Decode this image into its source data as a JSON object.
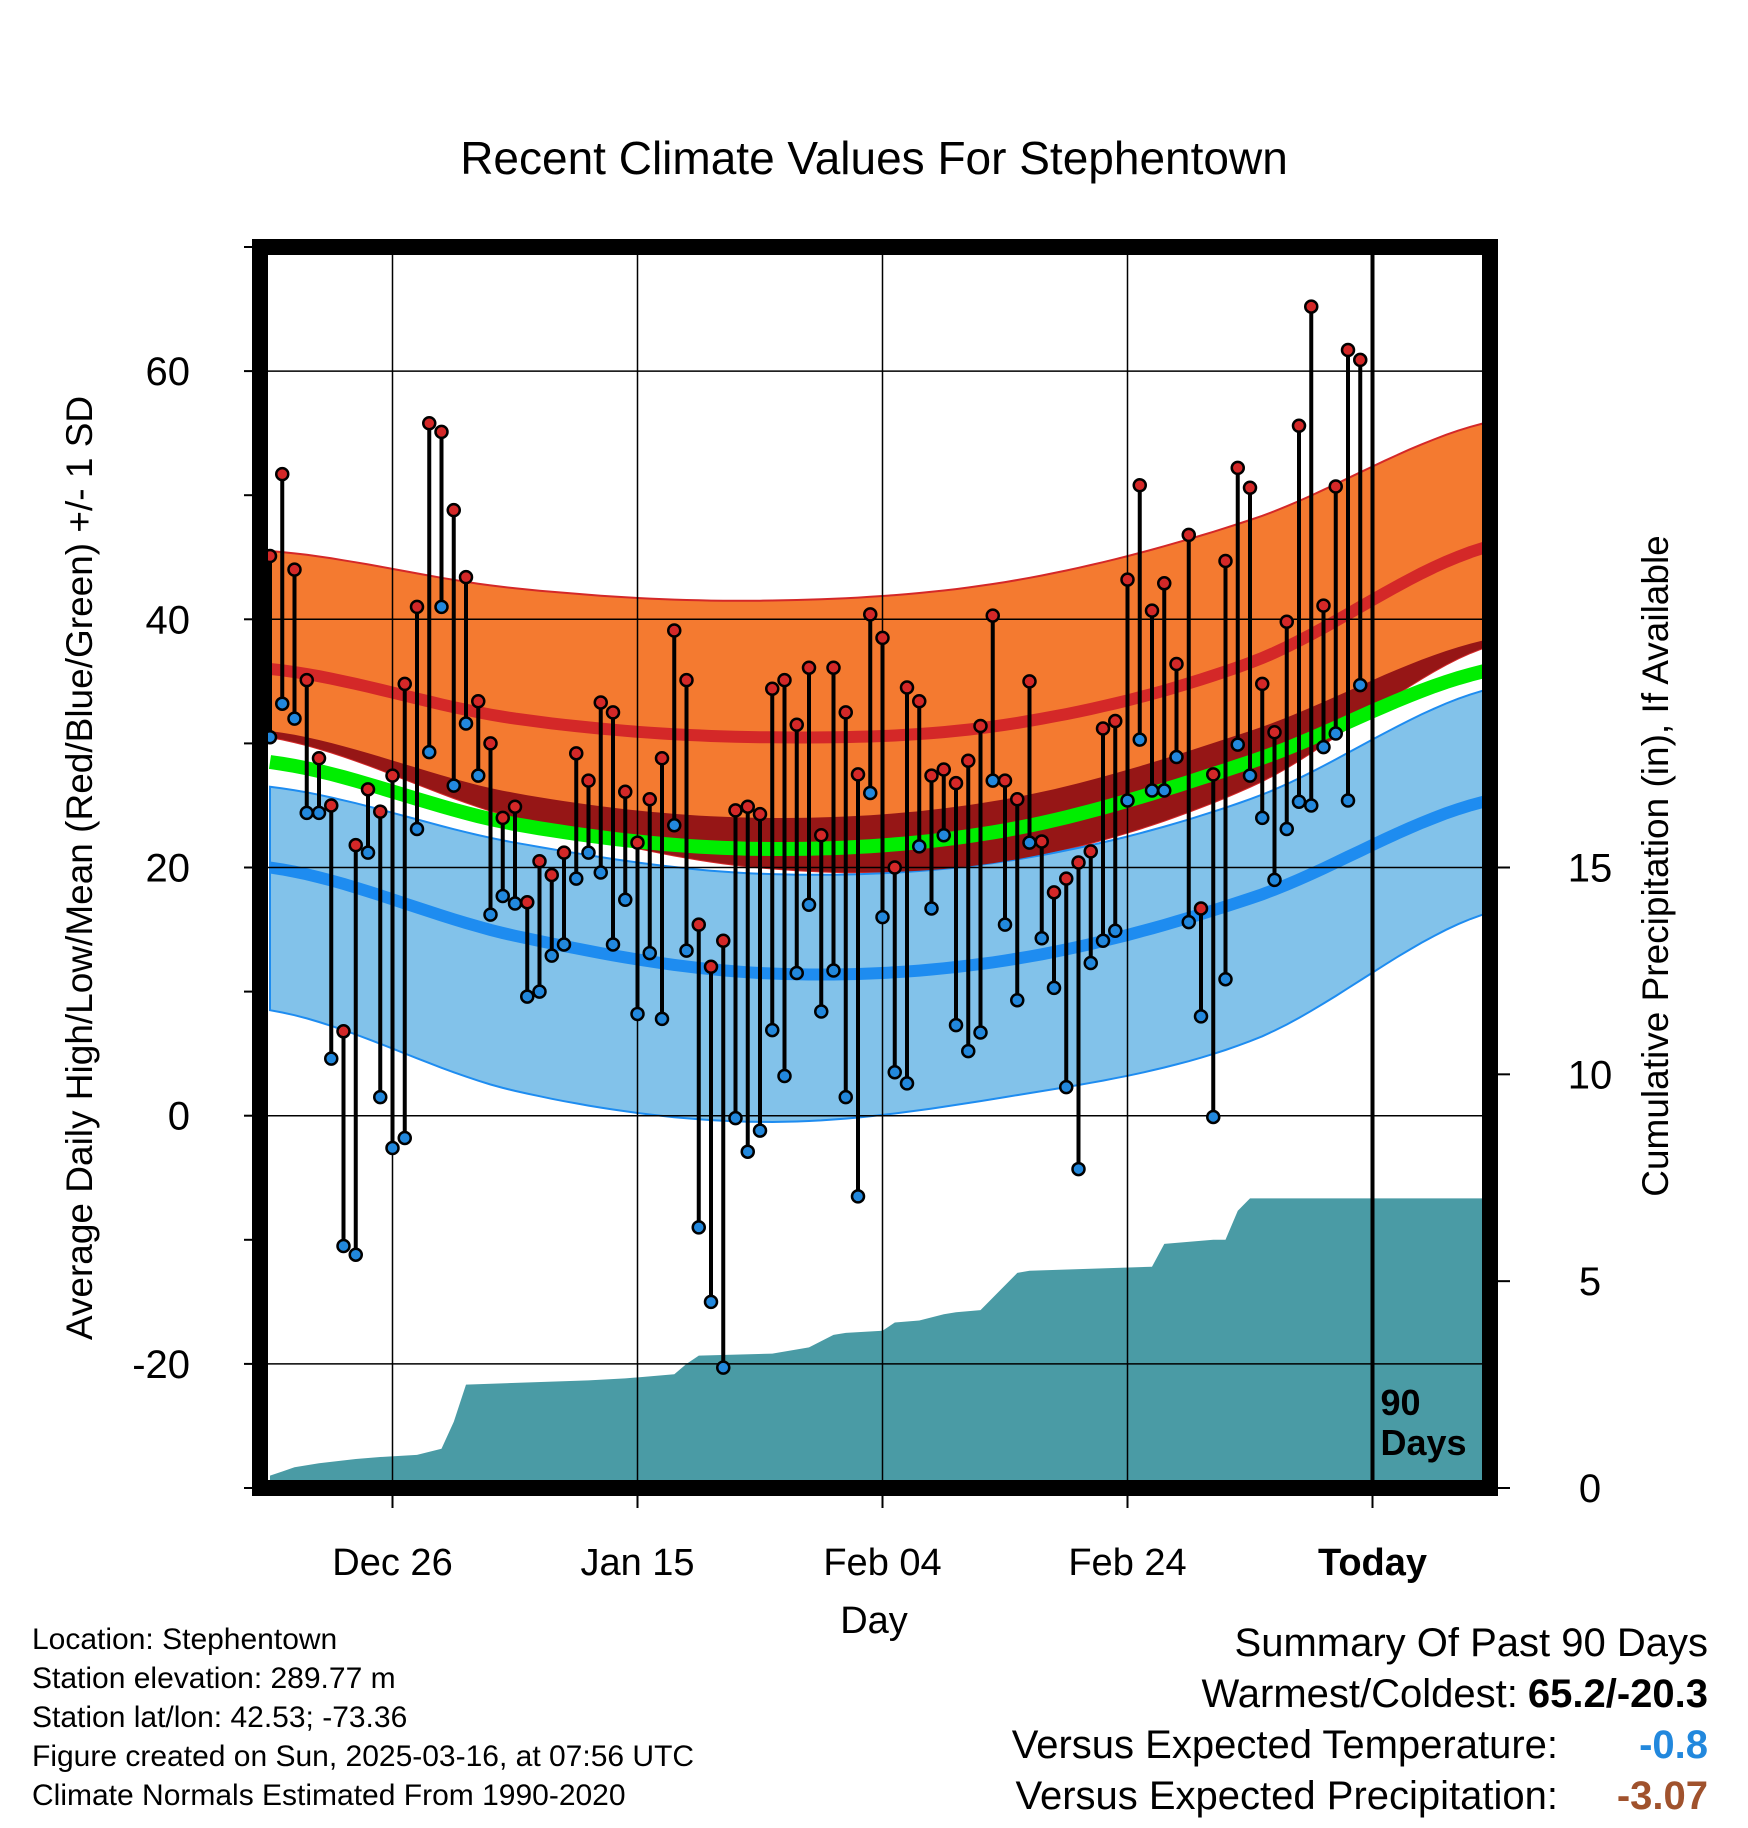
{
  "chart_data": {
    "type": "line",
    "title": "Recent Climate Values For Stephentown",
    "xlabel": "Day",
    "ylabel": "Average Daily High/Low/Mean (Red/Blue/Green) +/- 1 SD",
    "ylabel_right": "Cumulative Precipitation (in), If Available",
    "x_tick_labels": [
      "Dec 26",
      "Jan 15",
      "Feb 04",
      "Feb 24",
      "Today"
    ],
    "y_ticks": [
      "-20",
      "0",
      "20",
      "40",
      "60"
    ],
    "y_ticks_right": [
      "0",
      "5",
      "10",
      "15"
    ],
    "ylim": [
      -30,
      70
    ],
    "ylim_right": [
      0,
      30
    ],
    "today_marker": "90\nDays",
    "grid": true,
    "colors": {
      "high_band": "#f47a30",
      "high_normal": "#d42828",
      "mean_band": "#961616",
      "mean_normal": "#00ee00",
      "low_band": "#82c2ea",
      "low_normal": "#1e8cf0",
      "precip": "#4a9ba5",
      "high_dot": "#d42828",
      "low_dot": "#2288dd"
    },
    "observed_highs": [
      45.1,
      51.7,
      44.0,
      35.1,
      28.8,
      25.0,
      6.8,
      21.8,
      26.3,
      24.5,
      27.4,
      34.8,
      41.0,
      55.8,
      55.1,
      48.8,
      43.4,
      33.4,
      30.0,
      24.0,
      24.9,
      17.2,
      20.5,
      19.4,
      21.2,
      29.2,
      27.0,
      33.3,
      32.5,
      26.1,
      22.0,
      25.5,
      28.8,
      39.1,
      35.1,
      15.4,
      12.0,
      14.1,
      24.6,
      24.9,
      24.3,
      34.4,
      35.1,
      31.5,
      36.1,
      22.6,
      36.1,
      32.5,
      27.5,
      40.4,
      38.5,
      20.0,
      34.5,
      33.4,
      27.4,
      27.9,
      26.8,
      28.6,
      31.4,
      40.3,
      27.0,
      25.5,
      35.0,
      22.1,
      18.0,
      19.1,
      20.4,
      21.3,
      31.2,
      31.8,
      43.2,
      50.8,
      40.7,
      42.9,
      36.4,
      46.8,
      16.7,
      27.5,
      44.7,
      52.2,
      50.6,
      34.8,
      30.9,
      39.8,
      55.6,
      65.2,
      41.1,
      50.7,
      61.7,
      60.9
    ],
    "observed_lows": [
      30.5,
      33.2,
      32.0,
      24.4,
      24.4,
      4.6,
      -10.5,
      -11.2,
      21.2,
      1.5,
      -2.6,
      -1.8,
      23.1,
      29.3,
      41.0,
      26.6,
      31.6,
      27.4,
      16.2,
      17.7,
      17.1,
      9.6,
      10.0,
      12.9,
      13.8,
      19.1,
      21.2,
      19.6,
      13.8,
      17.4,
      8.2,
      13.1,
      7.8,
      23.4,
      13.3,
      -9.0,
      -15.0,
      -20.3,
      -0.2,
      -2.9,
      -1.2,
      6.9,
      3.2,
      11.5,
      17.0,
      8.4,
      11.7,
      1.5,
      -6.5,
      26.0,
      16.0,
      3.5,
      2.6,
      21.7,
      16.7,
      22.6,
      7.3,
      5.2,
      6.7,
      27.0,
      15.4,
      9.3,
      22.0,
      14.3,
      10.3,
      2.3,
      -4.3,
      12.3,
      14.1,
      14.9,
      25.4,
      30.3,
      26.2,
      26.2,
      28.9,
      15.6,
      8.0,
      -0.1,
      11.0,
      29.9,
      27.4,
      24.0,
      19.0,
      23.1,
      25.3,
      25.0,
      29.7,
      30.8,
      25.4,
      34.7
    ],
    "normals": {
      "days_offset": [
        0,
        20,
        40,
        60,
        80,
        100
      ],
      "high": [
        36.0,
        32.0,
        30.5,
        31.5,
        36.5,
        46.0
      ],
      "high_sd_upper": [
        45.5,
        42.5,
        41.5,
        43.0,
        48.0,
        56.0
      ],
      "high_sd_lower": [
        30.5,
        24.0,
        20.0,
        20.5,
        26.5,
        38.0
      ],
      "mean": [
        28.5,
        23.5,
        21.5,
        23.0,
        28.5,
        36.0
      ],
      "low": [
        20.0,
        14.5,
        11.5,
        12.5,
        17.5,
        25.5
      ],
      "low_sd_upper": [
        26.5,
        22.0,
        19.5,
        20.5,
        25.5,
        34.5
      ],
      "low_sd_lower": [
        8.5,
        2.0,
        -0.5,
        1.5,
        6.0,
        16.5
      ]
    },
    "cumulative_precip": {
      "day_index": [
        0,
        1,
        2,
        4,
        7,
        9,
        12,
        14,
        15,
        16,
        26,
        29,
        33,
        34,
        35,
        41,
        44,
        46,
        47,
        50,
        51,
        53,
        55,
        56,
        58,
        61,
        62,
        72,
        73,
        77,
        78,
        79,
        80,
        100
      ],
      "inches": [
        0.3,
        0.4,
        0.5,
        0.6,
        0.7,
        0.75,
        0.8,
        0.95,
        1.6,
        2.5,
        2.6,
        2.65,
        2.75,
        3.0,
        3.2,
        3.25,
        3.4,
        3.7,
        3.75,
        3.8,
        4.0,
        4.05,
        4.2,
        4.25,
        4.3,
        5.2,
        5.25,
        5.35,
        5.9,
        6.0,
        6.0,
        6.7,
        7.0,
        7.0
      ]
    }
  },
  "info": {
    "location": "Location: Stephentown",
    "elevation": "Station elevation: 289.77 m",
    "latlon": "Station lat/lon: 42.53; -73.36",
    "created": "Figure created on Sun, 2025-03-16, at 07:56 UTC",
    "normals": "Climate Normals Estimated From 1990-2020"
  },
  "summary": {
    "title": "Summary Of Past 90 Days",
    "warmest_label": "Warmest/Coldest:",
    "warmest_value": "65.2/-20.3",
    "temp_label": "Versus Expected Temperature:",
    "temp_value": "-0.8",
    "temp_color": "#2288dd",
    "precip_label": "Versus Expected Precipitation:",
    "precip_value": "-3.07",
    "precip_color": "#a0522d"
  }
}
